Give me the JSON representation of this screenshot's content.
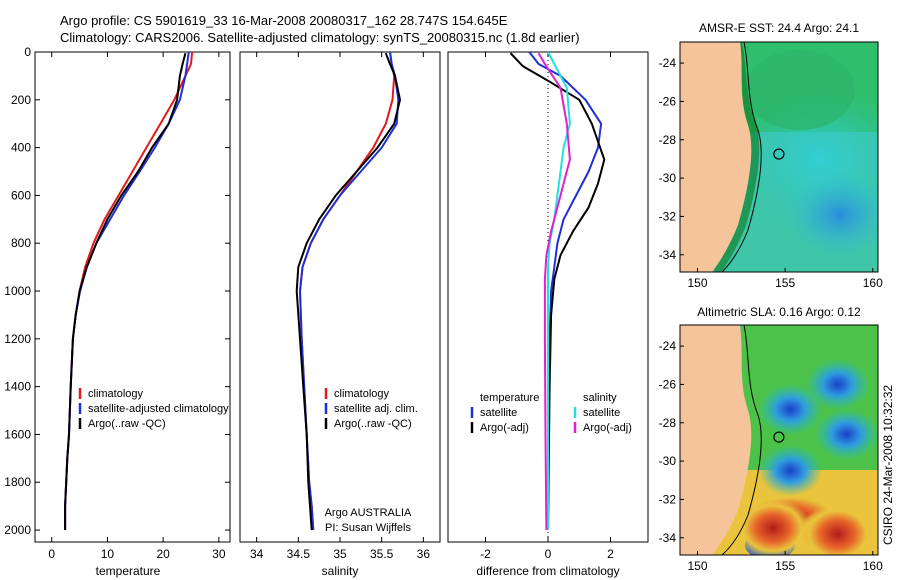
{
  "header": {
    "line1": "Argo profile: CS 5901619_33 16-Mar-2008 20080317_162 28.747S 154.645E",
    "line2": "Climatology: CARS2006. Satellite-adjusted climatology: synTS_20080315.nc (1.8d earlier)"
  },
  "colors": {
    "climatology": "#e31a1c",
    "satellite": "#1f2fd6",
    "argo": "#000000",
    "salinity_satellite": "#22e0e0",
    "salinity_argo": "#e020d0",
    "land": "#f5c49a"
  },
  "chart_data": [
    {
      "type": "line",
      "panel": "temperature",
      "xlabel": "temperature",
      "ylabel": "",
      "xlim": [
        -3,
        32
      ],
      "ylim": [
        2050,
        0
      ],
      "xticks": [
        0,
        10,
        20,
        30
      ],
      "yticks": [
        0,
        200,
        400,
        600,
        800,
        1000,
        1200,
        1400,
        1600,
        1800,
        2000
      ],
      "legend": [
        "climatology",
        "satellite-adjusted climatology",
        "Argo(..raw -QC)"
      ],
      "series": [
        {
          "name": "climatology",
          "color_key": "climatology",
          "x": [
            25.2,
            25.0,
            24.0,
            22.0,
            19.5,
            17.0,
            14.5,
            12.0,
            9.5,
            7.5,
            6.0,
            5.0,
            4.3,
            3.8,
            3.4,
            3.1,
            2.8,
            2.6,
            2.4,
            2.4
          ],
          "y": [
            0,
            50,
            100,
            200,
            300,
            400,
            500,
            600,
            700,
            800,
            900,
            1000,
            1100,
            1200,
            1400,
            1600,
            1700,
            1800,
            1900,
            2000
          ]
        },
        {
          "name": "satellite-adjusted climatology",
          "color_key": "satellite",
          "x": [
            24.6,
            24.3,
            24.0,
            23.0,
            21.0,
            18.5,
            15.8,
            13.0,
            10.5,
            8.0,
            6.3,
            5.1,
            4.3,
            3.8,
            3.4,
            3.1,
            2.8,
            2.6,
            2.4,
            2.4
          ],
          "y": [
            0,
            50,
            100,
            200,
            300,
            400,
            500,
            600,
            700,
            800,
            900,
            1000,
            1100,
            1200,
            1400,
            1600,
            1700,
            1800,
            1900,
            2000
          ]
        },
        {
          "name": "Argo(..raw -QC)",
          "color_key": "argo",
          "x": [
            24.0,
            23.5,
            23.0,
            22.5,
            21.0,
            18.0,
            15.5,
            12.5,
            10.0,
            8.0,
            6.3,
            5.0,
            4.3,
            3.8,
            3.4,
            3.1,
            2.8,
            2.6,
            2.4,
            2.4
          ],
          "y": [
            5,
            50,
            100,
            200,
            300,
            400,
            500,
            600,
            700,
            800,
            900,
            1000,
            1100,
            1200,
            1400,
            1600,
            1700,
            1800,
            1900,
            2000
          ]
        }
      ]
    },
    {
      "type": "line",
      "panel": "salinity",
      "xlabel": "salinity",
      "ylabel": "",
      "xlim": [
        33.8,
        36.2
      ],
      "ylim": [
        2050,
        0
      ],
      "xticks": [
        34,
        34.5,
        35,
        35.5,
        36
      ],
      "yticks": [],
      "legend": [
        "climatology",
        "satellite adj. clim.",
        "Argo(..raw -QC)"
      ],
      "annotation": [
        "Argo AUSTRALIA",
        "PI: Susan Wijffels"
      ],
      "series": [
        {
          "name": "climatology",
          "color_key": "climatology",
          "x": [
            35.6,
            35.62,
            35.65,
            35.63,
            35.55,
            35.4,
            35.2,
            35.0,
            34.8,
            34.65,
            34.55,
            34.52,
            34.54,
            34.57,
            34.6,
            34.63,
            34.66,
            34.68
          ],
          "y": [
            0,
            50,
            100,
            200,
            300,
            400,
            500,
            600,
            700,
            800,
            900,
            1000,
            1200,
            1400,
            1600,
            1800,
            1900,
            2000
          ]
        },
        {
          "name": "satellite adj. clim.",
          "color_key": "satellite",
          "x": [
            35.6,
            35.62,
            35.66,
            35.7,
            35.68,
            35.5,
            35.25,
            35.0,
            34.8,
            34.65,
            34.55,
            34.52,
            34.54,
            34.57,
            34.6,
            34.63,
            34.66,
            34.68
          ],
          "y": [
            0,
            50,
            100,
            200,
            300,
            400,
            500,
            600,
            700,
            800,
            900,
            1000,
            1200,
            1400,
            1600,
            1800,
            1900,
            2000
          ]
        },
        {
          "name": "Argo(..raw -QC)",
          "color_key": "argo",
          "x": [
            35.55,
            35.6,
            35.66,
            35.72,
            35.65,
            35.45,
            35.2,
            34.95,
            34.75,
            34.6,
            34.5,
            34.48,
            34.52,
            34.56,
            34.6,
            34.62,
            34.64,
            34.66
          ],
          "y": [
            5,
            50,
            100,
            200,
            300,
            400,
            500,
            600,
            700,
            800,
            900,
            1000,
            1200,
            1400,
            1600,
            1800,
            1900,
            2000
          ]
        }
      ]
    },
    {
      "type": "line",
      "panel": "difference",
      "xlabel": "difference from climatology",
      "ylabel": "",
      "xlim": [
        -3.2,
        3.2
      ],
      "ylim": [
        2050,
        0
      ],
      "xticks": [
        -2,
        0,
        2
      ],
      "yticks": [],
      "zero_line": true,
      "legend_groups": [
        {
          "title": "temperature",
          "items": [
            "satellite",
            "Argo(-adj)"
          ]
        },
        {
          "title": "salinity",
          "items": [
            "satellite",
            "Argo(-adj)"
          ]
        }
      ],
      "series": [
        {
          "name": "satellite",
          "group": "temperature",
          "color_key": "satellite",
          "x": [
            -0.6,
            -0.3,
            0.4,
            1.2,
            1.7,
            1.6,
            1.3,
            0.9,
            0.5,
            0.3,
            0.2,
            0.1,
            0.05,
            0.02,
            0.0
          ],
          "y": [
            0,
            50,
            100,
            200,
            300,
            400,
            500,
            600,
            700,
            800,
            900,
            1000,
            1200,
            1500,
            2000
          ]
        },
        {
          "name": "Argo(-adj)",
          "group": "temperature",
          "color_key": "argo",
          "x": [
            -1.2,
            -0.8,
            0.0,
            1.0,
            1.4,
            1.8,
            1.6,
            1.3,
            0.8,
            0.4,
            0.2,
            0.1,
            0.05,
            0.0
          ],
          "y": [
            5,
            60,
            120,
            200,
            300,
            450,
            550,
            650,
            750,
            850,
            950,
            1100,
            1400,
            2000
          ]
        },
        {
          "name": "satellite",
          "group": "salinity",
          "color_key": "salinity_satellite",
          "x": [
            0.0,
            0.2,
            0.6,
            0.7,
            0.5,
            0.4,
            0.3,
            0.2,
            0.05,
            0.0,
            0.0,
            0.0
          ],
          "y": [
            0,
            50,
            150,
            300,
            400,
            500,
            600,
            700,
            800,
            900,
            1500,
            2000
          ]
        },
        {
          "name": "Argo(-adj)",
          "group": "salinity",
          "color_key": "salinity_argo",
          "x": [
            -0.3,
            -0.1,
            0.4,
            0.6,
            0.7,
            0.5,
            0.3,
            0.1,
            -0.05,
            -0.1,
            -0.1,
            -0.08,
            -0.05
          ],
          "y": [
            5,
            50,
            150,
            300,
            450,
            550,
            650,
            750,
            850,
            950,
            1200,
            1600,
            2000
          ]
        }
      ]
    },
    {
      "type": "heatmap",
      "panel": "sst-map",
      "title": "AMSR-E SST: 24.4  Argo: 24.1",
      "xlim": [
        149,
        160.3
      ],
      "ylim": [
        -34.9,
        -22.9
      ],
      "xticks": [
        150,
        155,
        160
      ],
      "yticks": [
        -24,
        -26,
        -28,
        -30,
        -32,
        -34
      ],
      "profile_location": {
        "lon": 154.645,
        "lat": -28.747
      }
    },
    {
      "type": "heatmap",
      "panel": "sla-map",
      "title": "Altimetric SLA: 0.16  Argo: 0.12",
      "xlim": [
        149,
        160.3
      ],
      "ylim": [
        -34.9,
        -22.9
      ],
      "xticks": [
        150,
        155,
        160
      ],
      "yticks": [
        -24,
        -26,
        -28,
        -30,
        -32,
        -34
      ],
      "profile_location": {
        "lon": 154.645,
        "lat": -28.747
      },
      "eddies": [
        {
          "lon": 155.3,
          "lat": -30.5,
          "label": "low"
        },
        {
          "lon": 155.3,
          "lat": -27.3,
          "label": "low"
        },
        {
          "lon": 158.0,
          "lat": -26.0,
          "label": "low"
        },
        {
          "lon": 158.5,
          "lat": -28.6,
          "label": "low"
        },
        {
          "lon": 154.3,
          "lat": -33.5,
          "label": "high"
        },
        {
          "lon": 158.0,
          "lat": -33.8,
          "label": "high"
        }
      ]
    }
  ],
  "side_label": "CSIRO 24-Mar-2008 10:32:32"
}
